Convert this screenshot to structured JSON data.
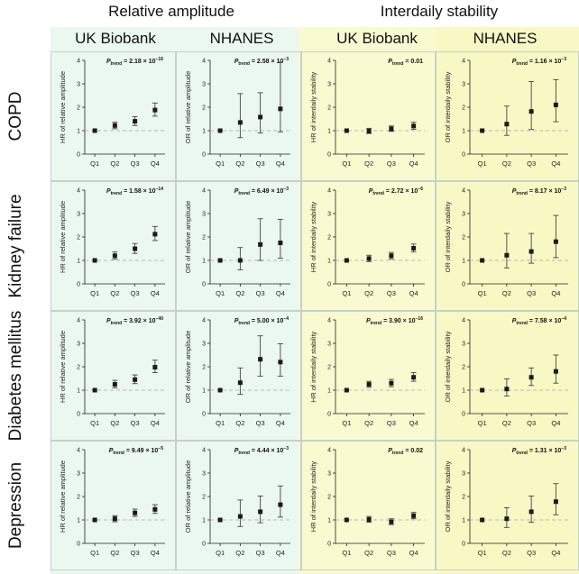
{
  "colors": {
    "ra_bg": "#eaf8ef",
    "is_bg": "#fafad0",
    "is_bg_right": "#f7f8c4",
    "panel_border": "#c8cfc8",
    "point": "#1a1a1a",
    "refline": "#b8b8b8"
  },
  "headers": {
    "group_ra": "Relative amplitude",
    "group_is": "Interdaily stability",
    "cols": [
      "UK Biobank",
      "NHANES",
      "UK Biobank",
      "NHANES"
    ]
  },
  "rows": [
    "COPD",
    "Kidney failure",
    "Diabetes mellitus",
    "Depression"
  ],
  "ylabels": [
    "HR of relative amplitude",
    "OR of relative amplitude",
    "HR of interdaily stability",
    "OR of interdaily stability"
  ],
  "ptrend_label": "P",
  "ptrend_sub": "trend",
  "chart_data": [
    {
      "type": "scatter",
      "title": "COPD",
      "categories": [
        "Q1",
        "Q2",
        "Q3",
        "Q4"
      ],
      "ylim": [
        0,
        4
      ],
      "yticks": [
        "0",
        "1",
        "2",
        "3",
        "4"
      ],
      "panels": [
        {
          "source": "UK Biobank",
          "metric": "Relative amplitude",
          "ylabel": "HR of relative amplitude",
          "p": "= 2.18 × 10",
          "pexp": "−16",
          "est": [
            1.0,
            1.22,
            1.4,
            1.88
          ],
          "lo": [
            1.0,
            1.08,
            1.22,
            1.62
          ],
          "hi": [
            1.0,
            1.36,
            1.6,
            2.18
          ]
        },
        {
          "source": "NHANES",
          "metric": "Relative amplitude",
          "ylabel": "OR of relative amplitude",
          "p": "= 2.58 × 10",
          "pexp": "−3",
          "est": [
            1.0,
            1.35,
            1.58,
            1.93
          ],
          "lo": [
            1.0,
            0.7,
            0.9,
            0.95
          ],
          "hi": [
            1.0,
            2.58,
            2.62,
            3.92
          ]
        },
        {
          "source": "UK Biobank",
          "metric": "Interdaily stability",
          "ylabel": "HR of interdaily stability",
          "p": "= 0.01",
          "pexp": "",
          "est": [
            1.0,
            0.98,
            1.08,
            1.2
          ],
          "lo": [
            1.0,
            0.88,
            0.97,
            1.06
          ],
          "hi": [
            1.0,
            1.1,
            1.2,
            1.36
          ]
        },
        {
          "source": "NHANES",
          "metric": "Interdaily stability",
          "ylabel": "OR of interdaily stability",
          "p": "= 1.16 × 10",
          "pexp": "−3",
          "est": [
            1.0,
            1.28,
            1.82,
            2.1
          ],
          "lo": [
            1.0,
            0.8,
            1.05,
            1.38
          ],
          "hi": [
            1.0,
            2.05,
            3.1,
            3.18
          ]
        }
      ]
    },
    {
      "type": "scatter",
      "title": "Kidney failure",
      "categories": [
        "Q1",
        "Q2",
        "Q3",
        "Q4"
      ],
      "ylim": [
        0,
        4
      ],
      "yticks": [
        "0",
        "1",
        "2",
        "3",
        "4"
      ],
      "panels": [
        {
          "source": "UK Biobank",
          "metric": "Relative amplitude",
          "ylabel": "HR of relative amplitude",
          "p": "= 1.58 × 10",
          "pexp": "−14",
          "est": [
            1.0,
            1.2,
            1.5,
            2.12
          ],
          "lo": [
            1.0,
            1.06,
            1.3,
            1.85
          ],
          "hi": [
            1.0,
            1.36,
            1.72,
            2.45
          ]
        },
        {
          "source": "NHANES",
          "metric": "Relative amplitude",
          "ylabel": "OR of relative amplitude",
          "p": "= 6.49 × 10",
          "pexp": "−3",
          "est": [
            1.0,
            1.0,
            1.68,
            1.75
          ],
          "lo": [
            1.0,
            0.6,
            1.0,
            1.1
          ],
          "hi": [
            1.0,
            1.55,
            2.78,
            2.75
          ]
        },
        {
          "source": "UK Biobank",
          "metric": "Interdaily stability",
          "ylabel": "HR of interdaily stability",
          "p": "= 2.72 × 10",
          "pexp": "−6",
          "est": [
            1.0,
            1.08,
            1.2,
            1.52
          ],
          "lo": [
            1.0,
            0.95,
            1.06,
            1.36
          ],
          "hi": [
            1.0,
            1.22,
            1.34,
            1.7
          ]
        },
        {
          "source": "NHANES",
          "metric": "Interdaily stability",
          "ylabel": "OR of interdaily stability",
          "p": "= 8.17 × 10",
          "pexp": "−3",
          "est": [
            1.0,
            1.22,
            1.38,
            1.8
          ],
          "lo": [
            1.0,
            0.68,
            0.88,
            1.12
          ],
          "hi": [
            1.0,
            2.15,
            2.15,
            2.92
          ]
        }
      ]
    },
    {
      "type": "scatter",
      "title": "Diabetes mellitus",
      "categories": [
        "Q1",
        "Q2",
        "Q3",
        "Q4"
      ],
      "ylim": [
        0,
        4
      ],
      "yticks": [
        "0",
        "1",
        "2",
        "3",
        "4"
      ],
      "panels": [
        {
          "source": "UK Biobank",
          "metric": "Relative amplitude",
          "ylabel": "HR of relative amplitude",
          "p": "= 3.92 × 10",
          "pexp": "−40",
          "est": [
            1.0,
            1.25,
            1.45,
            1.98
          ],
          "lo": [
            1.0,
            1.1,
            1.28,
            1.75
          ],
          "hi": [
            1.0,
            1.42,
            1.65,
            2.28
          ]
        },
        {
          "source": "NHANES",
          "metric": "Relative amplitude",
          "ylabel": "OR of relative amplitude",
          "p": "= 5.00 × 10",
          "pexp": "−4",
          "est": [
            1.0,
            1.32,
            2.32,
            2.2
          ],
          "lo": [
            1.0,
            0.82,
            1.6,
            1.6
          ],
          "hi": [
            1.0,
            1.95,
            3.32,
            2.98
          ]
        },
        {
          "source": "UK Biobank",
          "metric": "Interdaily stability",
          "ylabel": "HR of interdaily stability",
          "p": "= 3.90 × 10",
          "pexp": "−16",
          "est": [
            1.0,
            1.25,
            1.3,
            1.55
          ],
          "lo": [
            1.0,
            1.12,
            1.15,
            1.38
          ],
          "hi": [
            1.0,
            1.38,
            1.46,
            1.75
          ]
        },
        {
          "source": "NHANES",
          "metric": "Interdaily stability",
          "ylabel": "OR of interdaily stability",
          "p": "= 7.58 × 10",
          "pexp": "−4",
          "est": [
            1.0,
            1.05,
            1.55,
            1.8
          ],
          "lo": [
            1.0,
            0.75,
            1.2,
            1.3
          ],
          "hi": [
            1.0,
            1.48,
            1.95,
            2.5
          ]
        }
      ]
    },
    {
      "type": "scatter",
      "title": "Depression",
      "categories": [
        "Q1",
        "Q2",
        "Q3",
        "Q4"
      ],
      "ylim": [
        0,
        4
      ],
      "yticks": [
        "0",
        "1",
        "2",
        "3",
        "4"
      ],
      "panels": [
        {
          "source": "UK Biobank",
          "metric": "Relative amplitude",
          "ylabel": "HR of relative amplitude",
          "p": "= 9.49 × 10",
          "pexp": "−5",
          "est": [
            1.0,
            1.05,
            1.3,
            1.45
          ],
          "lo": [
            1.0,
            0.92,
            1.15,
            1.28
          ],
          "hi": [
            1.0,
            1.18,
            1.46,
            1.65
          ]
        },
        {
          "source": "NHANES",
          "metric": "Relative amplitude",
          "ylabel": "OR of relative amplitude",
          "p": "= 4.44 × 10",
          "pexp": "−3",
          "est": [
            1.0,
            1.15,
            1.35,
            1.65
          ],
          "lo": [
            1.0,
            0.72,
            0.88,
            1.12
          ],
          "hi": [
            1.0,
            1.85,
            2.02,
            2.45
          ]
        },
        {
          "source": "UK Biobank",
          "metric": "Interdaily stability",
          "ylabel": "HR of interdaily stability",
          "p": "= 0.02",
          "pexp": "",
          "est": [
            1.0,
            1.02,
            0.92,
            1.18
          ],
          "lo": [
            1.0,
            0.9,
            0.8,
            1.05
          ],
          "hi": [
            1.0,
            1.15,
            1.05,
            1.32
          ]
        },
        {
          "source": "NHANES",
          "metric": "Interdaily stability",
          "ylabel": "OR of interdaily stability",
          "p": "= 1.31 × 10",
          "pexp": "−3",
          "est": [
            1.0,
            1.05,
            1.35,
            1.78
          ],
          "lo": [
            1.0,
            0.68,
            0.9,
            1.22
          ],
          "hi": [
            1.0,
            1.52,
            2.02,
            2.55
          ]
        }
      ]
    }
  ]
}
